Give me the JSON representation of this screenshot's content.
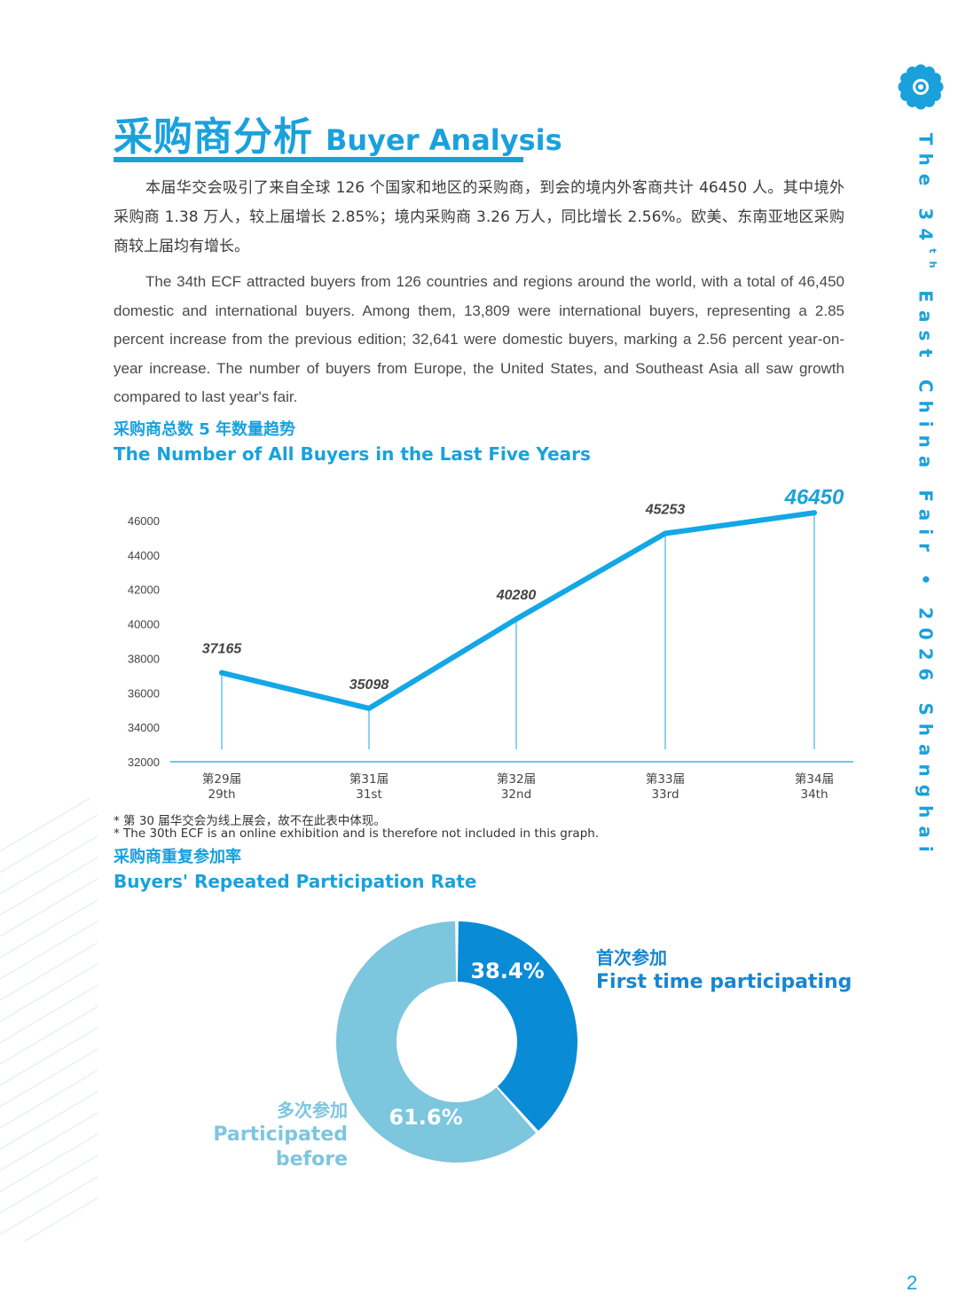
{
  "side": {
    "title_pre": "The 34",
    "title_sup": "th",
    "title_post": " East China Fair • 2026 Shanghai",
    "page_number": "2",
    "logo_icon": "flower-logo-icon"
  },
  "header": {
    "title_cn": "采购商分析",
    "title_en": "Buyer Analysis"
  },
  "body": {
    "para_cn": "本届华交会吸引了来自全球 126 个国家和地区的采购商，到会的境内外客商共计 46450 人。其中境外采购商 1.38 万人，较上届增长 2.85%；境内采购商 3.26 万人，同比增长 2.56%。欧美、东南亚地区采购商较上届均有增长。",
    "para_en": "The 34th ECF attracted buyers from 126 countries and regions around the world, with a total of 46,450 domestic and international buyers. Among them, 13,809 were international buyers, representing a 2.85 percent increase from the previous edition; 32,641 were domestic buyers, marking a 2.56 percent year-on-year increase. The number of buyers from Europe, the United States, and Southeast Asia all saw growth compared to last year's fair."
  },
  "line_section": {
    "title_cn": "采购商总数 5 年数量趋势",
    "title_en": "The Number of All Buyers in the Last Five Years",
    "note_cn": "* 第 30 届华交会为线上展会，故不在此表中体现。",
    "note_en": "* The 30th ECF is an online exhibition and is therefore not included in this graph."
  },
  "donut_section": {
    "title_cn": "采购商重复参加率",
    "title_en": "Buyers' Repeated Participation Rate",
    "first_cn": "首次参加",
    "first_en": "First time participating",
    "before_cn": "多次参加",
    "before_en": "Participated before"
  },
  "colors": {
    "accent": "#1aa1dc",
    "line": "#13a7e6",
    "donut_first": "#0a8bd6",
    "donut_before": "#7cc6de"
  },
  "chart_data": [
    {
      "type": "line",
      "categories": [
        "第29届\n29th",
        "第31届\n31st",
        "第32届\n32nd",
        "第33届\n33rd",
        "第34届\n34th"
      ],
      "cat_cn": [
        "第29届",
        "第31届",
        "第32届",
        "第33届",
        "第34届"
      ],
      "cat_en": [
        "29th",
        "31st",
        "32nd",
        "33rd",
        "34th"
      ],
      "values": [
        37165,
        35098,
        40280,
        45253,
        46450
      ],
      "value_labels": [
        "37165",
        "35098",
        "40280",
        "45253",
        "46450"
      ],
      "yticks": [
        32000,
        34000,
        36000,
        38000,
        40000,
        42000,
        44000,
        46000
      ],
      "ylim": [
        32000,
        46000
      ],
      "grid": false,
      "highlight_last": true
    },
    {
      "type": "pie",
      "donut": true,
      "labels": [
        "首次参加 First time participating",
        "多次参加 Participated before"
      ],
      "values": [
        38.4,
        61.6
      ],
      "value_labels": [
        "38.4%",
        "61.6%"
      ]
    }
  ]
}
